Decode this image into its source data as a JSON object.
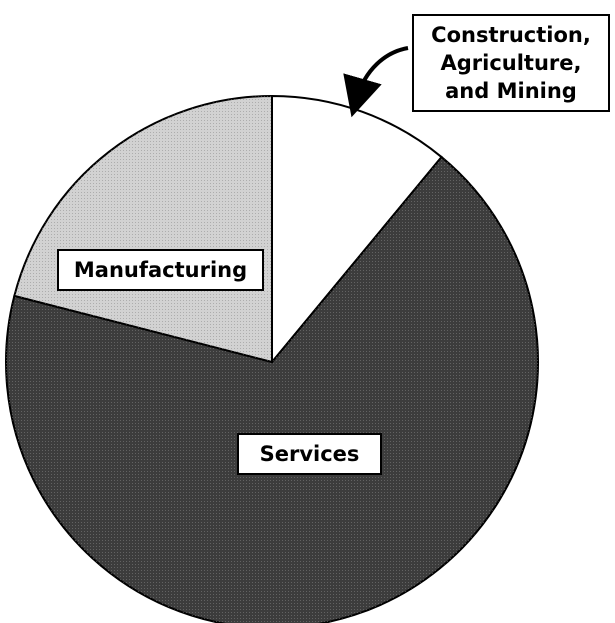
{
  "chart_data": {
    "type": "pie",
    "categories": [
      "Construction, Agriculture, and Mining",
      "Services",
      "Manufacturing"
    ],
    "values": [
      11,
      68,
      21
    ],
    "colors": [
      "#ffffff",
      "#3c3c3c",
      "#d2d2d2"
    ]
  }
}
